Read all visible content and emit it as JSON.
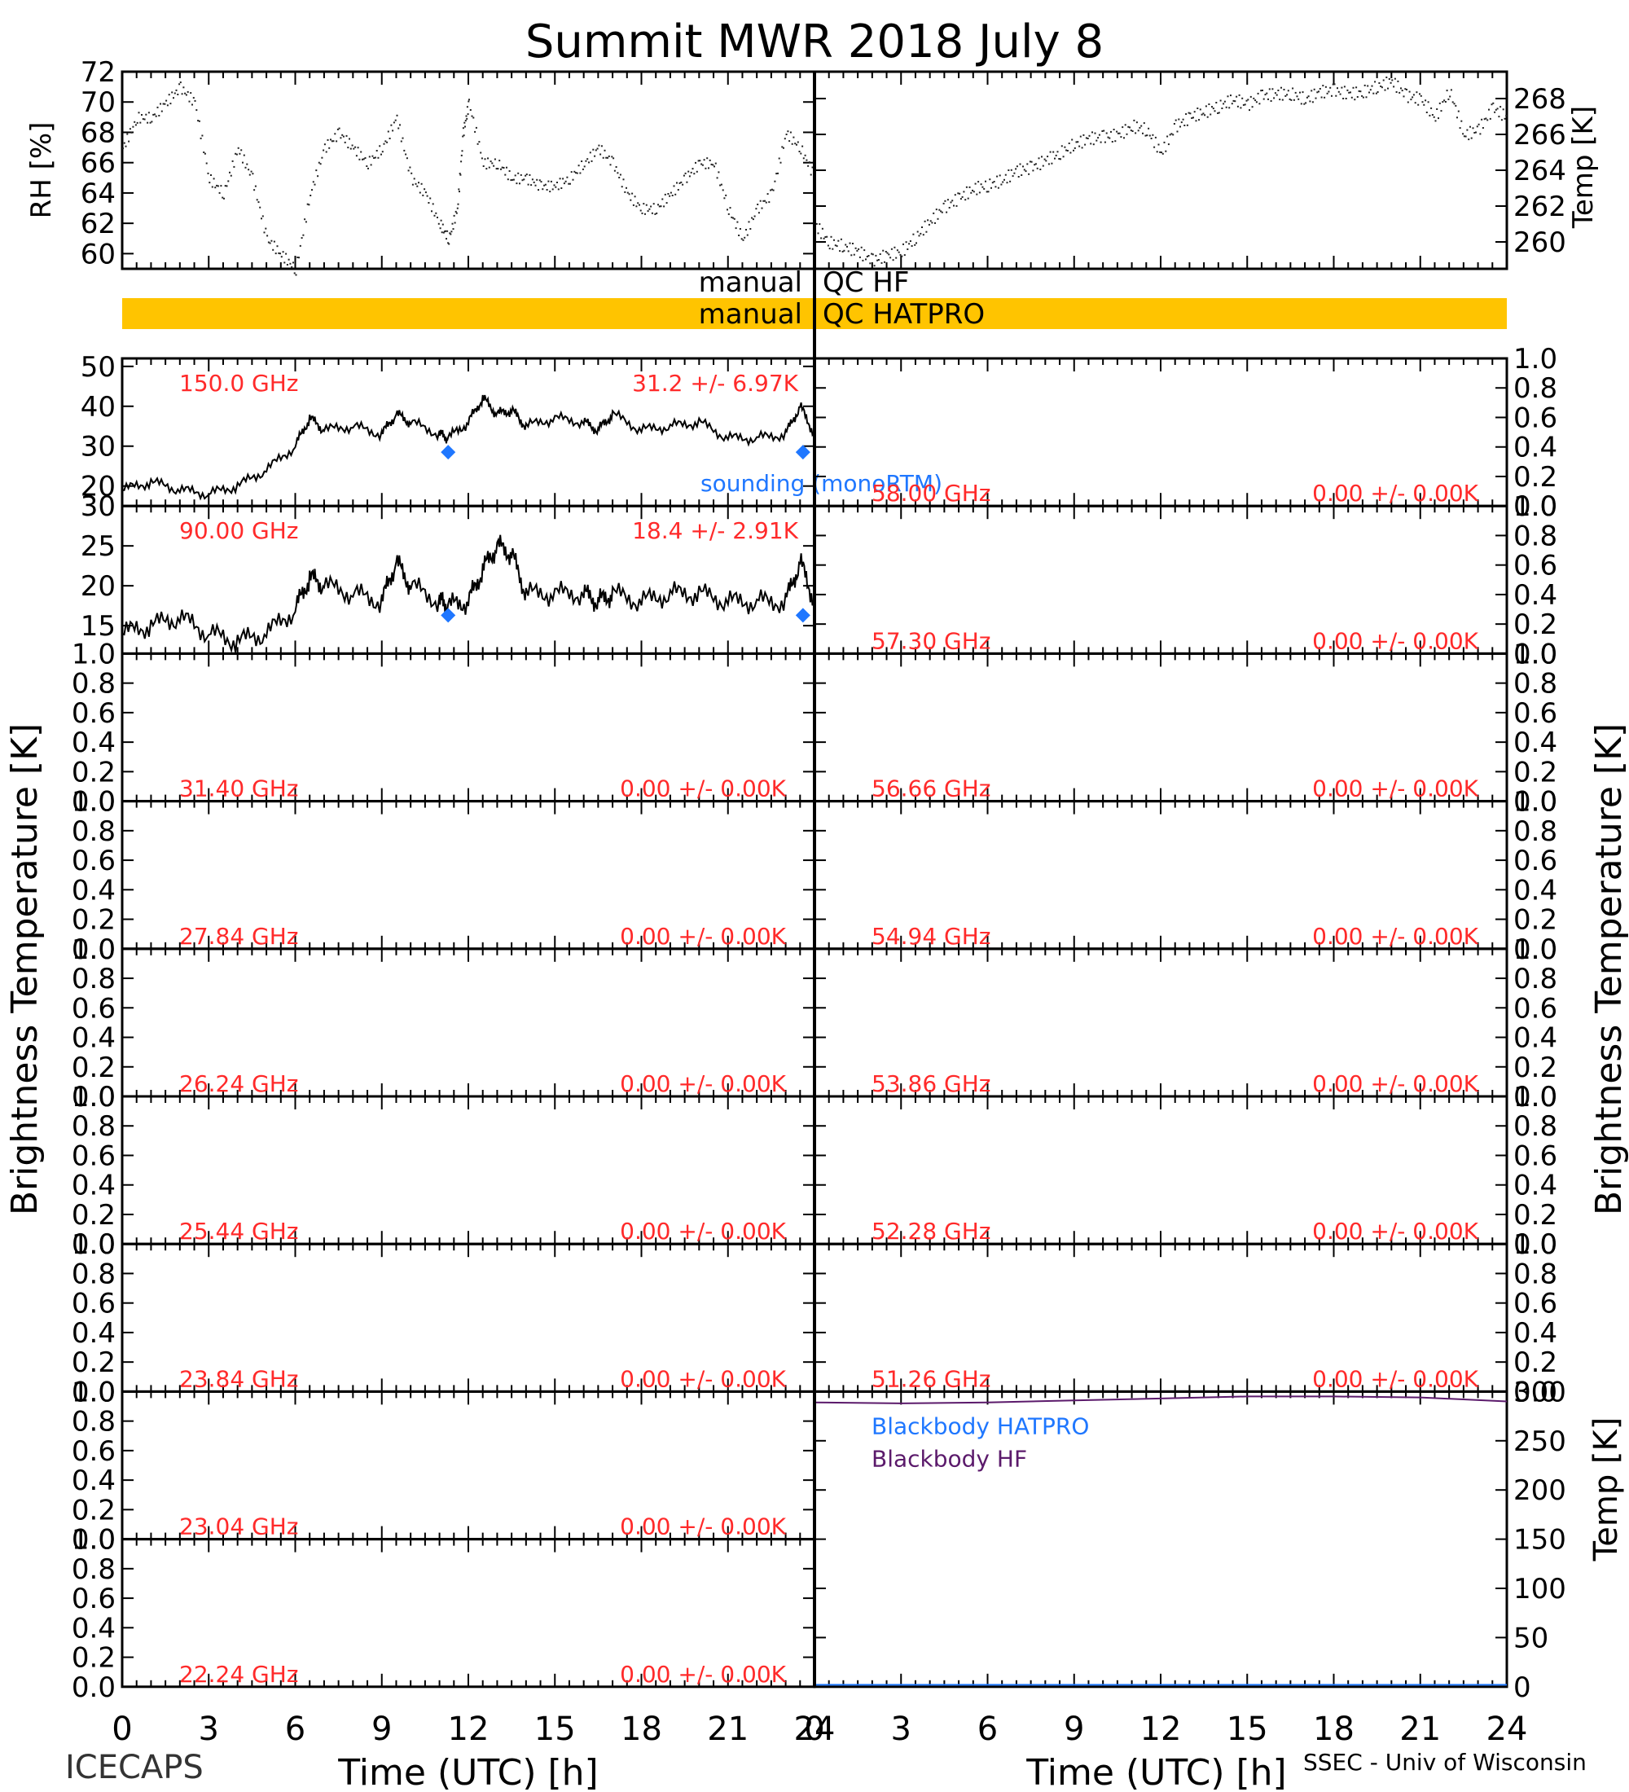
{
  "title": "Summit MWR 2018 July  8",
  "footer": {
    "left": "ICECAPS",
    "right": "SSEC - Univ of Wisconsin"
  },
  "colors": {
    "axis": "#000000",
    "channel_text": "#ff2a2a",
    "qc_bar": "#ffc400",
    "sounding": "#1f77ff",
    "bb_hatpro": "#1f77ff",
    "bb_hf": "#5b1a6b",
    "trace": "#000000"
  },
  "qc": {
    "hf_left": "manual",
    "hf_right": "QC HF",
    "hatpro_left": "manual",
    "hatpro_right": "QC HATPRO"
  },
  "axes": {
    "rh_label": "RH [%]",
    "temp_label": "Temp [K]",
    "bt_label": "Brightness Temperature [K]",
    "bb_temp_label": "Temp [K]",
    "time_label": "Time (UTC) [h]",
    "time_ticks": [
      "0",
      "3",
      "6",
      "9",
      "12",
      "15",
      "18",
      "21",
      "24"
    ]
  },
  "chart_data": [
    {
      "type": "scatter",
      "panel": "rh",
      "ylabel": "RH [%]",
      "ylim": [
        59,
        72
      ],
      "xlim": [
        0,
        24
      ],
      "yticks": [
        "60",
        "62",
        "64",
        "66",
        "68",
        "70",
        "72"
      ],
      "x": [
        0,
        0.5,
        1,
        1.5,
        2,
        2.5,
        3,
        3.5,
        4,
        4.5,
        5,
        5.5,
        6,
        6.5,
        7,
        7.5,
        8,
        8.5,
        9,
        9.5,
        10,
        10.5,
        11,
        11.3,
        11.6,
        11.8,
        12,
        12.5,
        13,
        13.5,
        14,
        14.5,
        15,
        15.5,
        16,
        16.5,
        17,
        17.5,
        18,
        18.5,
        19,
        19.5,
        20,
        20.5,
        21,
        21.5,
        22,
        22.5,
        23,
        23.5,
        24
      ],
      "y": [
        67,
        69,
        69,
        70,
        71,
        70,
        65,
        64,
        67,
        65,
        61,
        60,
        59,
        64,
        67,
        68,
        67,
        66,
        67,
        69,
        65,
        64,
        62,
        61,
        63,
        68,
        70,
        66,
        66,
        65,
        65,
        64.5,
        64.5,
        65,
        66,
        67,
        66,
        64,
        63,
        63,
        64,
        65,
        66,
        66,
        63,
        61,
        63,
        64,
        68,
        67,
        65
      ]
    },
    {
      "type": "scatter",
      "panel": "temp",
      "ylabel": "Temp [K]",
      "ylim": [
        258.5,
        269.5
      ],
      "xlim": [
        0,
        24
      ],
      "yticks": [
        "260",
        "262",
        "264",
        "266",
        "268"
      ],
      "x": [
        0,
        0.5,
        1,
        1.5,
        2,
        2.5,
        3,
        3.5,
        4,
        4.5,
        5,
        5.5,
        6,
        6.5,
        7,
        7.5,
        8,
        8.5,
        9,
        9.5,
        10,
        10.5,
        11,
        11.5,
        12,
        12.5,
        13,
        13.5,
        14,
        14.5,
        15,
        15.5,
        16,
        16.5,
        17,
        17.5,
        18,
        18.5,
        19,
        19.5,
        20,
        20.5,
        21,
        21.5,
        22,
        22.5,
        23,
        23.5,
        24
      ],
      "y": [
        261,
        260,
        259.8,
        259.5,
        259,
        259.3,
        259.5,
        260.3,
        261.2,
        262,
        262.5,
        263,
        263.2,
        263.5,
        264,
        264.2,
        264.6,
        265,
        265.5,
        265.8,
        265.9,
        266,
        266.5,
        266.3,
        265,
        266.5,
        267,
        267.3,
        267.6,
        268,
        267.7,
        268.2,
        268.3,
        268.3,
        268,
        268.4,
        268.5,
        268.3,
        268.4,
        268.7,
        269,
        268.2,
        268,
        267,
        268.5,
        266,
        266.3,
        267.5,
        267
      ]
    },
    {
      "type": "line",
      "panel": "tb_150",
      "label": "150.0 GHz",
      "stats": "31.2 +/-  6.97K",
      "ylim": [
        15,
        52
      ],
      "yticks": [
        "20",
        "30",
        "40",
        "50"
      ],
      "x": [
        0,
        1,
        2,
        3,
        4,
        5,
        6,
        6.5,
        7,
        8,
        9,
        9.5,
        10,
        11,
        11.3,
        12,
        12.5,
        13,
        13.5,
        14,
        15,
        16,
        16.5,
        17,
        18,
        19,
        20,
        21,
        22,
        23,
        23.5,
        24
      ],
      "y": [
        19,
        21,
        19,
        18,
        20,
        24,
        30,
        37,
        34,
        35,
        33,
        38,
        36,
        33,
        32,
        36,
        42,
        38,
        39,
        35,
        37,
        36,
        34,
        38,
        34,
        35,
        36,
        32,
        32,
        33,
        40,
        33
      ],
      "sounding": {
        "label": "sounding (monoRTM)",
        "x": [
          11.3,
          23.6
        ],
        "y": [
          28.5,
          28.5
        ]
      }
    },
    {
      "type": "line",
      "panel": "tb_90",
      "label": "90.00 GHz",
      "stats": "18.4 +/-  2.91K",
      "ylim": [
        11.5,
        30
      ],
      "yticks": [
        "15",
        "20",
        "25",
        "30"
      ],
      "x": [
        0,
        1,
        2,
        3,
        4,
        5,
        6,
        6.5,
        7,
        8,
        9,
        9.5,
        10,
        11,
        11.3,
        12,
        12.5,
        13,
        13.5,
        14,
        15,
        16,
        16.5,
        17,
        18,
        19,
        20,
        21,
        22,
        23,
        23.5,
        24
      ],
      "y": [
        14,
        15,
        16,
        14,
        13,
        14,
        17,
        21,
        20,
        19,
        18,
        23,
        20,
        18,
        17.5,
        18,
        22,
        25,
        24,
        19,
        19,
        19,
        18,
        19,
        18,
        19,
        19,
        18,
        18,
        18,
        23,
        18
      ],
      "sounding": {
        "x": [
          11.3,
          23.6
        ],
        "y": [
          16.3,
          16.3
        ]
      }
    },
    {
      "type": "line",
      "panel": "tb_left",
      "label": "31.40 GHz",
      "stats": "0.00 +/-  0.00K",
      "ylim": [
        0,
        1
      ]
    },
    {
      "type": "line",
      "panel": "tb_left",
      "label": "27.84 GHz",
      "stats": "0.00 +/-  0.00K",
      "ylim": [
        0,
        1
      ]
    },
    {
      "type": "line",
      "panel": "tb_left",
      "label": "26.24 GHz",
      "stats": "0.00 +/-  0.00K",
      "ylim": [
        0,
        1
      ]
    },
    {
      "type": "line",
      "panel": "tb_left",
      "label": "25.44 GHz",
      "stats": "0.00 +/-  0.00K",
      "ylim": [
        0,
        1
      ]
    },
    {
      "type": "line",
      "panel": "tb_left",
      "label": "23.84 GHz",
      "stats": "0.00 +/-  0.00K",
      "ylim": [
        0,
        1
      ]
    },
    {
      "type": "line",
      "panel": "tb_left",
      "label": "23.04 GHz",
      "stats": "0.00 +/-  0.00K",
      "ylim": [
        0,
        1
      ]
    },
    {
      "type": "line",
      "panel": "tb_left",
      "label": "22.24 GHz",
      "stats": "0.00 +/-  0.00K",
      "ylim": [
        0,
        1
      ]
    },
    {
      "type": "line",
      "panel": "tb_right",
      "label": "58.00 GHz",
      "stats": "0.00 +/-  0.00K",
      "ylim": [
        0,
        1
      ]
    },
    {
      "type": "line",
      "panel": "tb_right",
      "label": "57.30 GHz",
      "stats": "0.00 +/-  0.00K",
      "ylim": [
        0,
        1
      ]
    },
    {
      "type": "line",
      "panel": "tb_right",
      "label": "56.66 GHz",
      "stats": "0.00 +/-  0.00K",
      "ylim": [
        0,
        1
      ]
    },
    {
      "type": "line",
      "panel": "tb_right",
      "label": "54.94 GHz",
      "stats": "0.00 +/-  0.00K",
      "ylim": [
        0,
        1
      ]
    },
    {
      "type": "line",
      "panel": "tb_right",
      "label": "53.86 GHz",
      "stats": "0.00 +/-  0.00K",
      "ylim": [
        0,
        1
      ]
    },
    {
      "type": "line",
      "panel": "tb_right",
      "label": "52.28 GHz",
      "stats": "0.00 +/-  0.00K",
      "ylim": [
        0,
        1
      ]
    },
    {
      "type": "line",
      "panel": "tb_right",
      "label": "51.26 GHz",
      "stats": "0.00 +/-  0.00K",
      "ylim": [
        0,
        1
      ]
    },
    {
      "type": "line",
      "panel": "blackbody",
      "ylabel": "Temp [K]",
      "ylim": [
        0,
        300
      ],
      "yticks": [
        "0",
        "50",
        "100",
        "150",
        "200",
        "250",
        "300"
      ],
      "series": [
        {
          "name": "Blackbody HATPRO",
          "x": [
            0,
            24
          ],
          "y": [
            2,
            2
          ]
        },
        {
          "name": "Blackbody HF",
          "x": [
            0,
            3,
            6,
            9,
            12,
            15,
            18,
            21,
            24
          ],
          "y": [
            289,
            288,
            289,
            291,
            293,
            295,
            295,
            294,
            290
          ]
        }
      ]
    }
  ],
  "unit_ticks": [
    "0.0",
    "0.2",
    "0.4",
    "0.6",
    "0.8",
    "1.0"
  ]
}
